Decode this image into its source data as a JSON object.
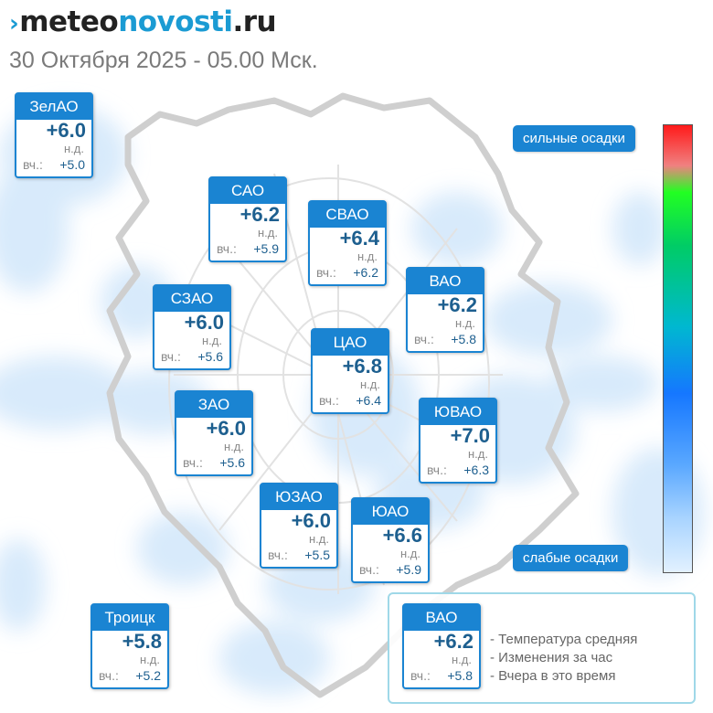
{
  "header": {
    "logo": {
      "part1": "meteo",
      "part2": "novosti",
      "part3": ".ru"
    },
    "date": "30 Октября 2025 - 05.00 Мск."
  },
  "districts": {
    "zelao": {
      "name": "ЗелАО",
      "temp": "+6.0",
      "change": "н.д.",
      "yesterday_label": "вч.:",
      "yesterday": "+5.0"
    },
    "sao": {
      "name": "САО",
      "temp": "+6.2",
      "change": "н.д.",
      "yesterday_label": "вч.:",
      "yesterday": "+5.9"
    },
    "svao": {
      "name": "СВАО",
      "temp": "+6.4",
      "change": "н.д.",
      "yesterday_label": "вч.:",
      "yesterday": "+6.2"
    },
    "vao": {
      "name": "ВАО",
      "temp": "+6.2",
      "change": "н.д.",
      "yesterday_label": "вч.:",
      "yesterday": "+5.8"
    },
    "szao": {
      "name": "СЗАО",
      "temp": "+6.0",
      "change": "н.д.",
      "yesterday_label": "вч.:",
      "yesterday": "+5.6"
    },
    "cao": {
      "name": "ЦАО",
      "temp": "+6.8",
      "change": "н.д.",
      "yesterday_label": "вч.:",
      "yesterday": "+6.4"
    },
    "zao": {
      "name": "ЗАО",
      "temp": "+6.0",
      "change": "н.д.",
      "yesterday_label": "вч.:",
      "yesterday": "+5.6"
    },
    "yuvao": {
      "name": "ЮВАО",
      "temp": "+7.0",
      "change": "н.д.",
      "yesterday_label": "вч.:",
      "yesterday": "+6.3"
    },
    "yuzao": {
      "name": "ЮЗАО",
      "temp": "+6.0",
      "change": "н.д.",
      "yesterday_label": "вч.:",
      "yesterday": "+5.5"
    },
    "yuao": {
      "name": "ЮАО",
      "temp": "+6.6",
      "change": "н.д.",
      "yesterday_label": "вч.:",
      "yesterday": "+5.9"
    },
    "troitsk": {
      "name": "Троицк",
      "temp": "+5.8",
      "change": "н.д.",
      "yesterday_label": "вч.:",
      "yesterday": "+5.2"
    }
  },
  "legend": {
    "sample": {
      "name": "ВАО",
      "temp": "+6.2",
      "change": "н.д.",
      "yesterday_label": "вч.:",
      "yesterday": "+5.8"
    },
    "lines": [
      "- Температура средняя",
      "- Изменения за час",
      "- Вчера в это время"
    ]
  },
  "precip_scale": {
    "strong_label": "сильные осадки",
    "weak_label": "слабые осадки",
    "colors": [
      "#ff1a1a",
      "#22ff22",
      "#00b8d0",
      "#1577ff",
      "#e2f1ff"
    ]
  },
  "colors": {
    "accent": "#1a84d2",
    "temp_text": "#1d5f8f",
    "rain_light": "#d6e9fb"
  }
}
